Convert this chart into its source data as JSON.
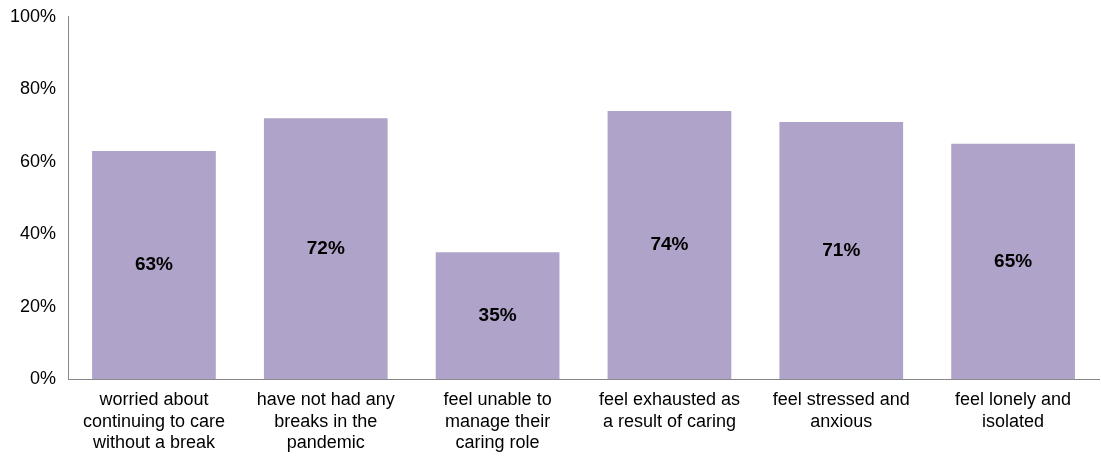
{
  "chart_data": {
    "type": "bar",
    "categories": [
      "worried about continuing to care without a break",
      "have not had any breaks in the pandemic",
      "feel unable to manage their caring role",
      "feel exhausted as a result of caring",
      "feel stressed and anxious",
      "feel lonely and isolated"
    ],
    "values": [
      63,
      72,
      35,
      74,
      71,
      65
    ],
    "color": "#b0a3c9",
    "value_labels": [
      "63%",
      "72%",
      "35%",
      "74%",
      "71%",
      "65%"
    ],
    "ylim": [
      0,
      100
    ],
    "yticks": [
      {
        "value": 0,
        "label": "0%"
      },
      {
        "value": 20,
        "label": "20%"
      },
      {
        "value": 40,
        "label": "40%"
      },
      {
        "value": 60,
        "label": "60%"
      },
      {
        "value": 80,
        "label": "80%"
      },
      {
        "value": 100,
        "label": "100%"
      }
    ],
    "grid": false,
    "legend": false
  }
}
